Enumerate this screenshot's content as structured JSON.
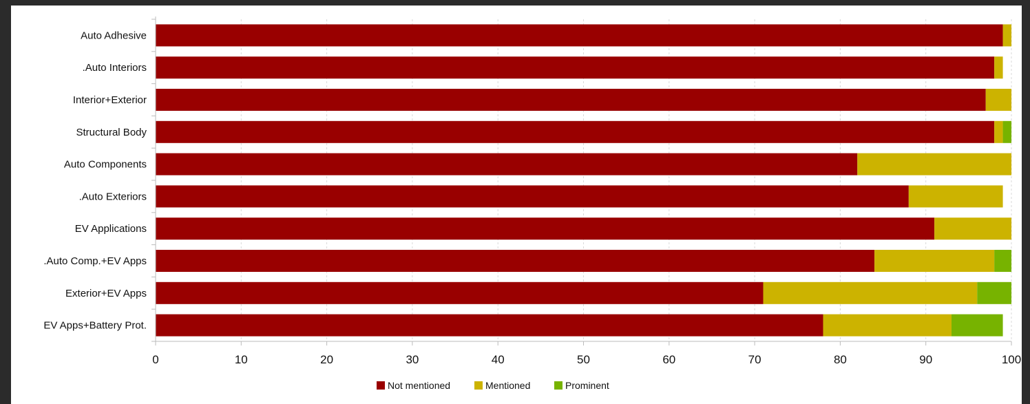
{
  "chart_data": {
    "type": "bar",
    "orientation": "horizontal",
    "stacked": true,
    "title": "",
    "xlabel": "",
    "ylabel": "",
    "xlim": [
      0,
      100
    ],
    "x_ticks": [
      "0",
      "10",
      "20",
      "30",
      "40",
      "50",
      "60",
      "70",
      "80",
      "90",
      "100"
    ],
    "grid": "vertical dashed",
    "legend_position": "bottom-center",
    "categories": [
      "Auto Adhesive",
      ".Auto Interiors",
      "Interior+Exterior",
      "Structural Body",
      "Auto Components",
      ".Auto Exteriors",
      "EV Applications",
      ".Auto Comp.+EV Apps",
      "Exterior+EV Apps",
      "EV Apps+Battery Prot."
    ],
    "series": [
      {
        "name": "Not mentioned",
        "color": "#990000",
        "values": [
          99,
          98,
          97,
          98,
          82,
          88,
          91,
          84,
          71,
          78
        ]
      },
      {
        "name": "Mentioned",
        "color": "#ccb300",
        "values": [
          1,
          1,
          3,
          1,
          18,
          11,
          9,
          14,
          25,
          15
        ]
      },
      {
        "name": "Prominent",
        "color": "#77b300",
        "values": [
          0,
          0,
          0,
          1,
          0,
          0,
          0,
          2,
          4,
          6
        ]
      }
    ]
  }
}
